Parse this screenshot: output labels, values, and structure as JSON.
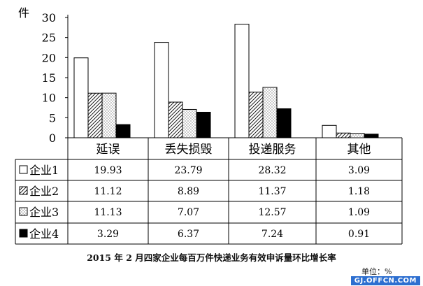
{
  "chart_data": {
    "type": "bar",
    "ylabel": "件",
    "yticks": [
      0,
      5,
      10,
      15,
      20,
      25,
      30
    ],
    "ylim": [
      0,
      30
    ],
    "grid": false,
    "categories": [
      "延误",
      "丢失损毁",
      "投递服务",
      "其他"
    ],
    "series": [
      {
        "name": "企业1",
        "pattern": "blank",
        "values": [
          19.93,
          23.79,
          28.32,
          3.09
        ],
        "value_labels": [
          "19.93",
          "23.79",
          "28.32",
          "3.09"
        ]
      },
      {
        "name": "企业2",
        "pattern": "diagonal-hatch",
        "values": [
          11.12,
          8.89,
          11.37,
          1.18
        ],
        "value_labels": [
          "11.12",
          "8.89",
          "11.37",
          "1.18"
        ]
      },
      {
        "name": "企业3",
        "pattern": "dotted",
        "values": [
          11.13,
          7.07,
          12.57,
          1.09
        ],
        "value_labels": [
          "11.13",
          "7.07",
          "12.57",
          "1.09"
        ]
      },
      {
        "name": "企业4",
        "pattern": "solid-black",
        "values": [
          3.29,
          6.37,
          7.24,
          0.91
        ],
        "value_labels": [
          "3.29",
          "6.37",
          "7.24",
          "0.91"
        ]
      }
    ],
    "title": "2015 年 2 月四家企业每百万件快递业务有效申诉量环比增长率",
    "unit_note": "单位：%"
  },
  "watermark": "GJ.OFFCN.COM",
  "colors": {
    "bar_fill": "#ffffff",
    "bar_stroke": "#000000",
    "solid": "#000000",
    "watermark_bg": "#2d6fd0"
  }
}
